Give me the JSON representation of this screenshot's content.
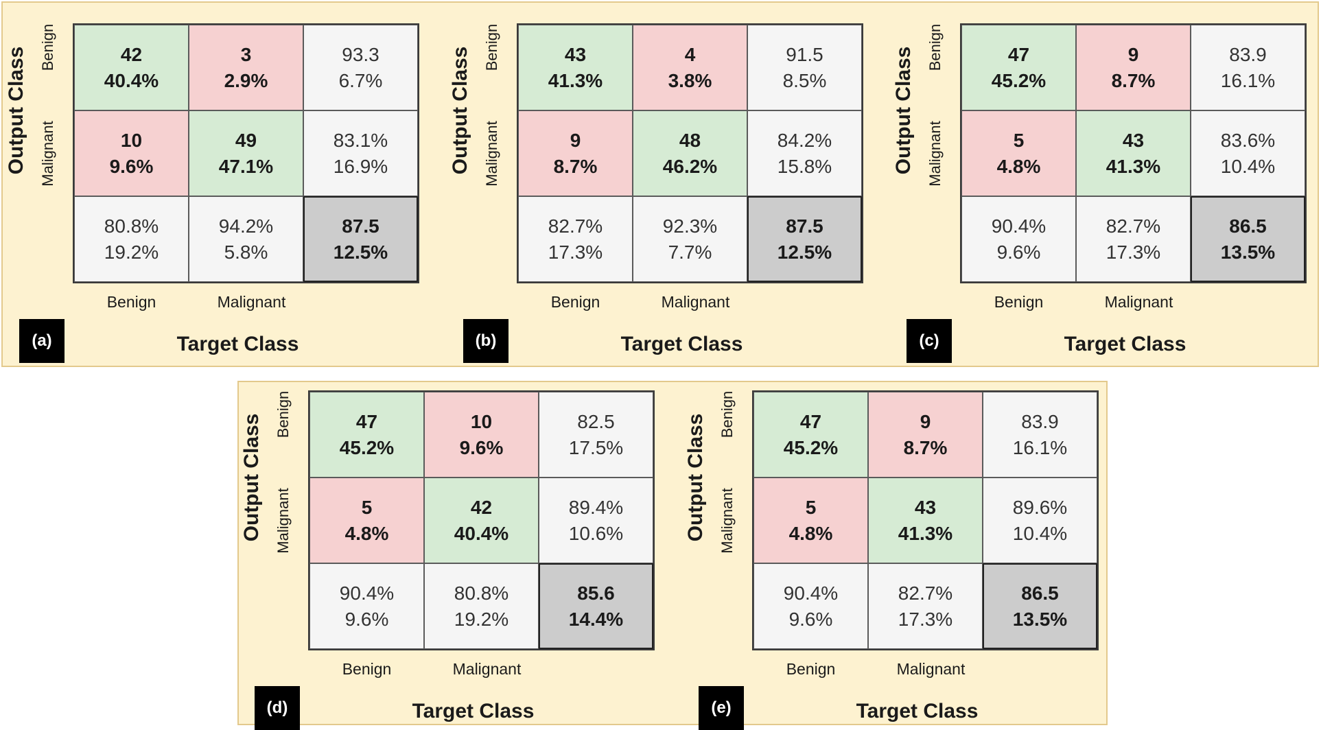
{
  "chart_data": [
    {
      "type": "table",
      "panel": "(a)",
      "title": "",
      "xlabel": "Target Class",
      "ylabel": "Output Class",
      "row_labels": [
        "Benign",
        "Malignant"
      ],
      "col_labels": [
        "Benign",
        "Malignant"
      ],
      "cells": [
        [
          {
            "top": "42",
            "bottom": "40.4%"
          },
          {
            "top": "3",
            "bottom": "2.9%"
          },
          {
            "top": "93.3",
            "bottom": "6.7%"
          }
        ],
        [
          {
            "top": "10",
            "bottom": "9.6%"
          },
          {
            "top": "49",
            "bottom": "47.1%"
          },
          {
            "top": "83.1%",
            "bottom": "16.9%"
          }
        ],
        [
          {
            "top": "80.8%",
            "bottom": "19.2%"
          },
          {
            "top": "94.2%",
            "bottom": "5.8%"
          },
          {
            "top": "87.5",
            "bottom": "12.5%"
          }
        ]
      ]
    },
    {
      "type": "table",
      "panel": "(b)",
      "title": "",
      "xlabel": "Target Class",
      "ylabel": "Output Class",
      "row_labels": [
        "Benign",
        "Malignant"
      ],
      "col_labels": [
        "Benign",
        "Malignant"
      ],
      "cells": [
        [
          {
            "top": "43",
            "bottom": "41.3%"
          },
          {
            "top": "4",
            "bottom": "3.8%"
          },
          {
            "top": "91.5",
            "bottom": "8.5%"
          }
        ],
        [
          {
            "top": "9",
            "bottom": "8.7%"
          },
          {
            "top": "48",
            "bottom": "46.2%"
          },
          {
            "top": "84.2%",
            "bottom": "15.8%"
          }
        ],
        [
          {
            "top": "82.7%",
            "bottom": "17.3%"
          },
          {
            "top": "92.3%",
            "bottom": "7.7%"
          },
          {
            "top": "87.5",
            "bottom": "12.5%"
          }
        ]
      ]
    },
    {
      "type": "table",
      "panel": "(c)",
      "title": "",
      "xlabel": "Target Class",
      "ylabel": "Output Class",
      "row_labels": [
        "Benign",
        "Malignant"
      ],
      "col_labels": [
        "Benign",
        "Malignant"
      ],
      "cells": [
        [
          {
            "top": "47",
            "bottom": "45.2%"
          },
          {
            "top": "9",
            "bottom": "8.7%"
          },
          {
            "top": "83.9",
            "bottom": "16.1%"
          }
        ],
        [
          {
            "top": "5",
            "bottom": "4.8%"
          },
          {
            "top": "43",
            "bottom": "41.3%"
          },
          {
            "top": "83.6%",
            "bottom": "10.4%"
          }
        ],
        [
          {
            "top": "90.4%",
            "bottom": "9.6%"
          },
          {
            "top": "82.7%",
            "bottom": "17.3%"
          },
          {
            "top": "86.5",
            "bottom": "13.5%"
          }
        ]
      ]
    },
    {
      "type": "table",
      "panel": "(d)",
      "title": "",
      "xlabel": "Target Class",
      "ylabel": "Output Class",
      "row_labels": [
        "Benign",
        "Malignant"
      ],
      "col_labels": [
        "Benign",
        "Malignant"
      ],
      "cells": [
        [
          {
            "top": "47",
            "bottom": "45.2%"
          },
          {
            "top": "10",
            "bottom": "9.6%"
          },
          {
            "top": "82.5",
            "bottom": "17.5%"
          }
        ],
        [
          {
            "top": "5",
            "bottom": "4.8%"
          },
          {
            "top": "42",
            "bottom": "40.4%"
          },
          {
            "top": "89.4%",
            "bottom": "10.6%"
          }
        ],
        [
          {
            "top": "90.4%",
            "bottom": "9.6%"
          },
          {
            "top": "80.8%",
            "bottom": "19.2%"
          },
          {
            "top": "85.6",
            "bottom": "14.4%"
          }
        ]
      ]
    },
    {
      "type": "table",
      "panel": "(e)",
      "title": "",
      "xlabel": "Target Class",
      "ylabel": "Output Class",
      "row_labels": [
        "Benign",
        "Malignant"
      ],
      "col_labels": [
        "Benign",
        "Malignant"
      ],
      "cells": [
        [
          {
            "top": "47",
            "bottom": "45.2%"
          },
          {
            "top": "9",
            "bottom": "8.7%"
          },
          {
            "top": "83.9",
            "bottom": "16.1%"
          }
        ],
        [
          {
            "top": "5",
            "bottom": "4.8%"
          },
          {
            "top": "43",
            "bottom": "41.3%"
          },
          {
            "top": "89.6%",
            "bottom": "10.4%"
          }
        ],
        [
          {
            "top": "90.4%",
            "bottom": "9.6%"
          },
          {
            "top": "82.7%",
            "bottom": "17.3%"
          },
          {
            "top": "86.5",
            "bottom": "13.5%"
          }
        ]
      ]
    }
  ],
  "colors": {
    "correct": "#d6ebd4",
    "incorrect": "#f6d1d1",
    "summary": "#f5f5f5",
    "overall": "#cccccc",
    "panel_background": "#fdf2d0"
  }
}
